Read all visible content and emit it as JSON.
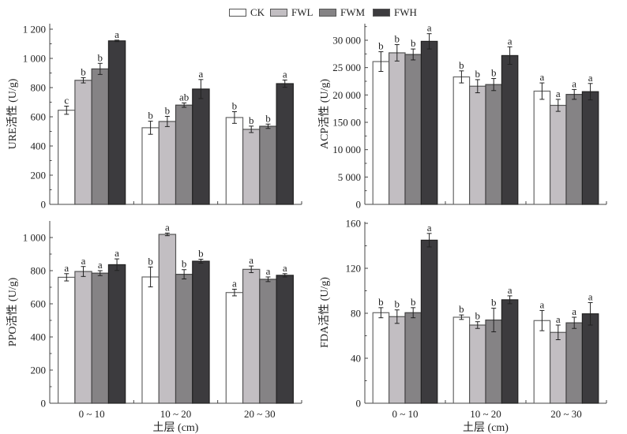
{
  "legend": [
    {
      "name": "CK",
      "color": "#ffffff"
    },
    {
      "name": "FWL",
      "color": "#c2bec2"
    },
    {
      "name": "FWM",
      "color": "#858385"
    },
    {
      "name": "FWH",
      "color": "#3c3b3e"
    }
  ],
  "chart_data": [
    {
      "type": "bar",
      "id": "ure",
      "title": "",
      "ylabel": "URE活性 (U/g)",
      "xlabel": "",
      "categories": [
        "0 ~ 10",
        "10 ~ 20",
        "20 ~ 30"
      ],
      "show_x_tick_labels": false,
      "ylim": [
        0,
        1200
      ],
      "yticks": [
        0,
        200,
        400,
        600,
        800,
        1000,
        1200
      ],
      "ytick_labels": [
        "0",
        "200",
        "400",
        "600",
        "800",
        "1 000",
        "1 200"
      ],
      "series": [
        {
          "name": "CK",
          "values": [
            645,
            525,
            595
          ],
          "errors": [
            28,
            45,
            40
          ],
          "letters": [
            "c",
            "b",
            "b"
          ]
        },
        {
          "name": "FWL",
          "values": [
            850,
            568,
            514
          ],
          "errors": [
            18,
            35,
            22
          ],
          "letters": [
            "b",
            "b",
            "b"
          ]
        },
        {
          "name": "FWM",
          "values": [
            928,
            680,
            535
          ],
          "errors": [
            38,
            15,
            15
          ],
          "letters": [
            "b",
            "ab",
            "b"
          ]
        },
        {
          "name": "FWH",
          "values": [
            1120,
            790,
            827
          ],
          "errors": [
            5,
            65,
            25
          ],
          "letters": [
            "a",
            "a",
            "a"
          ]
        }
      ]
    },
    {
      "type": "bar",
      "id": "acp",
      "title": "",
      "ylabel": "ACP活性 (U/g)",
      "xlabel": "",
      "categories": [
        "0 ~ 10",
        "10 ~ 20",
        "20 ~ 30"
      ],
      "show_x_tick_labels": false,
      "ylim": [
        0,
        32000
      ],
      "yticks": [
        0,
        5000,
        10000,
        15000,
        20000,
        25000,
        30000
      ],
      "ytick_labels": [
        "0",
        "5 000",
        "10 000",
        "150 00",
        "20 000",
        "25 000",
        "30 000"
      ],
      "series": [
        {
          "name": "CK",
          "values": [
            26100,
            23300,
            20700
          ],
          "errors": [
            1800,
            1100,
            1500
          ],
          "letters": [
            "b",
            "b",
            "a"
          ]
        },
        {
          "name": "FWL",
          "values": [
            27700,
            21600,
            18100
          ],
          "errors": [
            1500,
            1200,
            1100
          ],
          "letters": [
            "b",
            "b",
            "a"
          ]
        },
        {
          "name": "FWM",
          "values": [
            27400,
            21900,
            20100
          ],
          "errors": [
            1000,
            1100,
            900
          ],
          "letters": [
            "b",
            "b",
            "a"
          ]
        },
        {
          "name": "FWH",
          "values": [
            29800,
            27200,
            20600
          ],
          "errors": [
            1400,
            1600,
            1500
          ],
          "letters": [
            "a",
            "a",
            "a"
          ]
        }
      ]
    },
    {
      "type": "bar",
      "id": "ppo",
      "title": "",
      "ylabel": "PPO活性 (U/g)",
      "xlabel": "土层 (cm)",
      "categories": [
        "0 ~ 10",
        "10 ~ 20",
        "20 ~ 30"
      ],
      "show_x_tick_labels": true,
      "ylim": [
        0,
        1100
      ],
      "yticks": [
        0,
        200,
        400,
        600,
        800,
        1000
      ],
      "ytick_labels": [
        "0",
        "200",
        "400",
        "600",
        "800",
        "1 000"
      ],
      "series": [
        {
          "name": "CK",
          "values": [
            760,
            762,
            668
          ],
          "errors": [
            22,
            60,
            20
          ],
          "letters": [
            "a",
            "b",
            "a"
          ]
        },
        {
          "name": "FWL",
          "values": [
            795,
            1019,
            808
          ],
          "errors": [
            30,
            8,
            20
          ],
          "letters": [
            "a",
            "a",
            "a"
          ]
        },
        {
          "name": "FWM",
          "values": [
            785,
            778,
            748
          ],
          "errors": [
            15,
            28,
            14
          ],
          "letters": [
            "a",
            "b",
            "a"
          ]
        },
        {
          "name": "FWH",
          "values": [
            836,
            857,
            772
          ],
          "errors": [
            35,
            12,
            10
          ],
          "letters": [
            "a",
            "b",
            "a"
          ]
        }
      ]
    },
    {
      "type": "bar",
      "id": "fda",
      "title": "",
      "ylabel": "FDA活性 (U/g)",
      "xlabel": "土层 (cm)",
      "categories": [
        "0 ~ 10",
        "10 ~ 20",
        "20 ~ 30"
      ],
      "show_x_tick_labels": true,
      "ylim": [
        0,
        160
      ],
      "yticks": [
        0,
        40,
        80,
        120,
        160
      ],
      "ytick_labels": [
        "0",
        "40",
        "80",
        "120",
        "160"
      ],
      "series": [
        {
          "name": "CK",
          "values": [
            80.5,
            76.5,
            73.5
          ],
          "errors": [
            4.5,
            2,
            9
          ],
          "letters": [
            "b",
            "b",
            "a"
          ]
        },
        {
          "name": "FWL",
          "values": [
            77,
            69.5,
            63
          ],
          "errors": [
            6,
            3,
            6.5
          ],
          "letters": [
            "b",
            "b",
            "a"
          ]
        },
        {
          "name": "FWM",
          "values": [
            80.5,
            74,
            71.5
          ],
          "errors": [
            4.5,
            10.5,
            5
          ],
          "letters": [
            "b",
            "b",
            "a"
          ]
        },
        {
          "name": "FWH",
          "values": [
            145,
            92,
            79.5
          ],
          "errors": [
            6,
            3.5,
            10
          ],
          "letters": [
            "a",
            "a",
            "a"
          ]
        }
      ]
    }
  ]
}
